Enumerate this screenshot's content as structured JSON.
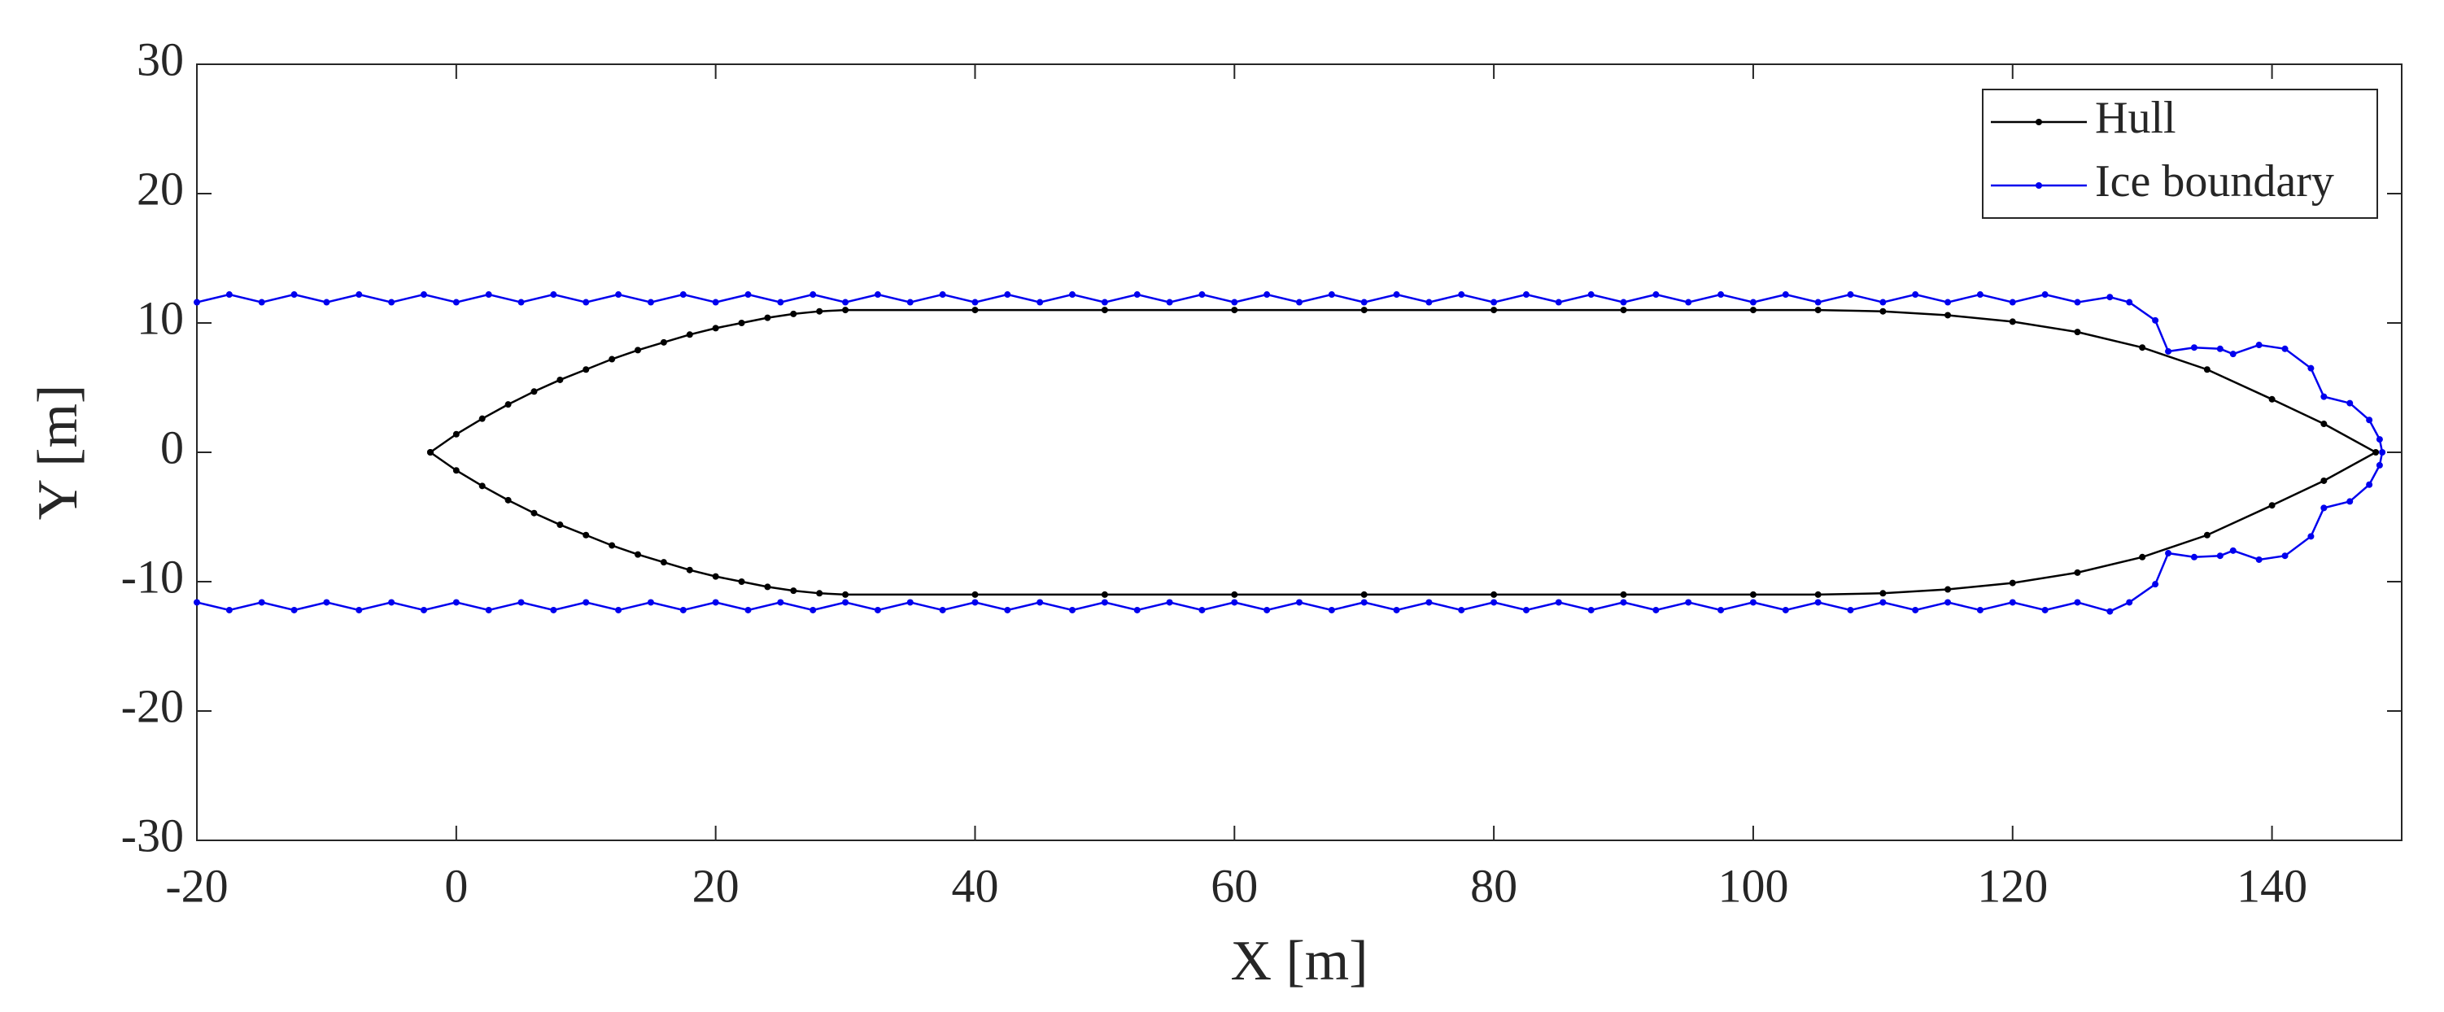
{
  "chart_data": {
    "type": "line",
    "xlabel": "X [m]",
    "ylabel": "Y [m]",
    "xlim": [
      -20,
      150
    ],
    "xticks": [
      -20,
      0,
      20,
      40,
      60,
      80,
      100,
      120,
      140
    ],
    "ylim": [
      -30,
      30
    ],
    "yticks": [
      -30,
      -20,
      -10,
      0,
      10,
      20,
      30
    ],
    "legend": "upper right",
    "series": [
      {
        "name": "Hull",
        "color": "#000000",
        "x": [
          -2,
          0,
          2,
          4,
          6,
          8,
          10,
          12,
          14,
          16,
          18,
          20,
          22,
          24,
          26,
          28,
          30,
          40,
          50,
          60,
          70,
          80,
          90,
          100,
          105,
          110,
          115,
          120,
          125,
          130,
          135,
          140,
          144,
          148,
          144,
          140,
          135,
          130,
          125,
          120,
          115,
          110,
          105,
          100,
          90,
          80,
          70,
          60,
          50,
          40,
          30,
          28,
          26,
          24,
          22,
          20,
          18,
          16,
          14,
          12,
          10,
          8,
          6,
          4,
          2,
          0,
          -2
        ],
        "values": [
          0,
          1.4,
          2.6,
          3.7,
          4.7,
          5.6,
          6.4,
          7.2,
          7.9,
          8.5,
          9.1,
          9.6,
          10.0,
          10.4,
          10.7,
          10.9,
          11,
          11,
          11,
          11,
          11,
          11,
          11,
          11,
          11,
          10.9,
          10.6,
          10.1,
          9.3,
          8.1,
          6.4,
          4.1,
          2.2,
          0,
          -2.2,
          -4.1,
          -6.4,
          -8.1,
          -9.3,
          -10.1,
          -10.6,
          -10.9,
          -11,
          -11,
          -11,
          -11,
          -11,
          -11,
          -11,
          -11,
          -11,
          -10.9,
          -10.7,
          -10.4,
          -10.0,
          -9.6,
          -9.1,
          -8.5,
          -7.9,
          -7.2,
          -6.4,
          -5.6,
          -4.7,
          -3.7,
          -2.6,
          -1.4,
          0
        ]
      },
      {
        "name": "Ice boundary",
        "color": "#0000ee",
        "x": [
          -20,
          -17.5,
          -15,
          -12.5,
          -10,
          -7.5,
          -5,
          -2.5,
          0,
          2.5,
          5,
          7.5,
          10,
          12.5,
          15,
          17.5,
          20,
          22.5,
          25,
          27.5,
          30,
          32.5,
          35,
          37.5,
          40,
          42.5,
          45,
          47.5,
          50,
          52.5,
          55,
          57.5,
          60,
          62.5,
          65,
          67.5,
          70,
          72.5,
          75,
          77.5,
          80,
          82.5,
          85,
          87.5,
          90,
          92.5,
          95,
          97.5,
          100,
          102.5,
          105,
          107.5,
          110,
          112.5,
          115,
          117.5,
          120,
          122.5,
          125,
          127.5,
          129,
          131,
          132,
          134,
          136,
          137,
          139,
          141,
          143,
          144,
          146,
          147.5,
          148.3,
          148.5,
          148.3,
          147.5,
          146,
          144,
          143,
          141,
          139,
          137,
          136,
          134,
          132,
          131,
          129,
          127.5,
          125,
          122.5,
          120,
          117.5,
          115,
          112.5,
          110,
          107.5,
          105,
          102.5,
          100,
          97.5,
          95,
          92.5,
          90,
          87.5,
          85,
          82.5,
          80,
          77.5,
          75,
          72.5,
          70,
          67.5,
          65,
          62.5,
          60,
          57.5,
          55,
          52.5,
          50,
          47.5,
          45,
          42.5,
          40,
          37.5,
          35,
          32.5,
          30,
          27.5,
          25,
          22.5,
          20,
          17.5,
          15,
          12.5,
          10,
          7.5,
          5,
          2.5,
          0,
          -2.5,
          -5,
          -7.5,
          -10,
          -12.5,
          -15,
          -17.5,
          -20
        ],
        "values": [
          11.6,
          12.2,
          11.6,
          12.2,
          11.6,
          12.2,
          11.6,
          12.2,
          11.6,
          12.2,
          11.6,
          12.2,
          11.6,
          12.2,
          11.6,
          12.2,
          11.6,
          12.2,
          11.6,
          12.2,
          11.6,
          12.2,
          11.6,
          12.2,
          11.6,
          12.2,
          11.6,
          12.2,
          11.6,
          12.2,
          11.6,
          12.2,
          11.6,
          12.2,
          11.6,
          12.2,
          11.6,
          12.2,
          11.6,
          12.2,
          11.6,
          12.2,
          11.6,
          12.2,
          11.6,
          12.2,
          11.6,
          12.2,
          11.6,
          12.2,
          11.6,
          12.2,
          11.6,
          12.2,
          11.6,
          12.2,
          11.6,
          12.2,
          11.6,
          12.0,
          11.6,
          10.2,
          7.8,
          8.1,
          8.0,
          7.6,
          8.3,
          8.0,
          6.5,
          4.3,
          3.8,
          2.5,
          1.0,
          0,
          -1.0,
          -2.5,
          -3.8,
          -4.3,
          -6.5,
          -8.0,
          -8.3,
          -7.6,
          -8.0,
          -8.1,
          -7.8,
          -10.2,
          -11.6,
          -12.3,
          -11.6,
          -12.2,
          -11.6,
          -12.2,
          -11.6,
          -12.2,
          -11.6,
          -12.2,
          -11.6,
          -12.2,
          -11.6,
          -12.2,
          -11.6,
          -12.2,
          -11.6,
          -12.2,
          -11.6,
          -12.2,
          -11.6,
          -12.2,
          -11.6,
          -12.2,
          -11.6,
          -12.2,
          -11.6,
          -12.2,
          -11.6,
          -12.2,
          -11.6,
          -12.2,
          -11.6,
          -12.2,
          -11.6,
          -12.2,
          -11.6,
          -12.2,
          -11.6,
          -12.2,
          -11.6,
          -12.2,
          -11.6,
          -12.2,
          -11.6,
          -12.2,
          -11.6,
          -12.2,
          -11.6,
          -12.2,
          -11.6,
          -12.2,
          -11.6,
          -12.2,
          -11.6,
          -12.2,
          -11.6,
          -12.2,
          -11.6,
          -12.2,
          -11.6
        ]
      }
    ]
  }
}
